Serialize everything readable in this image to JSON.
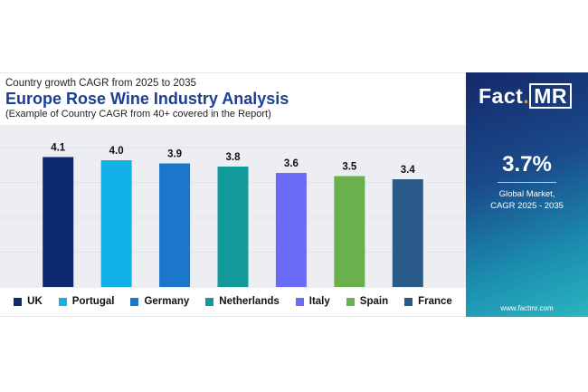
{
  "header": {
    "subtitle": "Country growth CAGR from 2025 to 2035",
    "title": "Europe Rose Wine Industry Analysis",
    "note": "(Example of Country CAGR from 40+ covered in the Report)"
  },
  "brand": {
    "logo_left": "Fact",
    "logo_dot": ".",
    "logo_right": "MR",
    "big_value": "3.7%",
    "caption_line1": "Global Market,",
    "caption_line2": "CAGR 2025 - 2035",
    "url": "www.factmr.com"
  },
  "chart_data": {
    "type": "bar",
    "categories": [
      "UK",
      "Portugal",
      "Germany",
      "Netherlands",
      "Italy",
      "Spain",
      "France"
    ],
    "values": [
      4.1,
      4.0,
      3.9,
      3.8,
      3.6,
      3.5,
      3.4
    ],
    "value_labels": [
      "4.1",
      "4.0",
      "3.9",
      "3.8",
      "3.6",
      "3.5",
      "3.4"
    ],
    "colors": [
      "#0d2a6e",
      "#12b1ea",
      "#1a77c9",
      "#12999a",
      "#6a6cf7",
      "#6ab04c",
      "#2a5a8a"
    ],
    "ylim": [
      0,
      4.4
    ],
    "legend": "bottom",
    "grid": true
  }
}
